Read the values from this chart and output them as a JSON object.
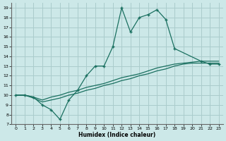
{
  "xlabel": "Humidex (Indice chaleur)",
  "bg_color": "#cce8e8",
  "grid_color": "#aacccc",
  "line_color": "#1a7060",
  "xlim": [
    -0.5,
    23.5
  ],
  "ylim": [
    7,
    19.5
  ],
  "xticks": [
    0,
    1,
    2,
    3,
    4,
    5,
    6,
    7,
    8,
    9,
    10,
    11,
    12,
    13,
    14,
    15,
    16,
    17,
    18,
    19,
    20,
    21,
    22,
    23
  ],
  "yticks": [
    7,
    8,
    9,
    10,
    11,
    12,
    13,
    14,
    15,
    16,
    17,
    18,
    19
  ],
  "line1_x": [
    0,
    1,
    2,
    3,
    4,
    5,
    6,
    7,
    8,
    9,
    10,
    11,
    12,
    13,
    14,
    15,
    16,
    17,
    18,
    21,
    22,
    23
  ],
  "line1_y": [
    10,
    10,
    9.8,
    9,
    8.5,
    7.5,
    9.5,
    10.5,
    12,
    13,
    13,
    15,
    19,
    16.5,
    18,
    18.3,
    18.8,
    17.8,
    14.8,
    13.5,
    13.2,
    13.2
  ],
  "line2_x": [
    0,
    1,
    2,
    3,
    4,
    5,
    6,
    7,
    8,
    9,
    10,
    11,
    12,
    13,
    14,
    15,
    16,
    17,
    18,
    19,
    20,
    21,
    22,
    23
  ],
  "line2_y": [
    10,
    10,
    9.8,
    9.5,
    9.8,
    10,
    10.3,
    10.5,
    10.8,
    11,
    11.2,
    11.5,
    11.8,
    12,
    12.2,
    12.5,
    12.8,
    13,
    13.2,
    13.3,
    13.4,
    13.5,
    13.5,
    13.5
  ],
  "line3_x": [
    0,
    1,
    2,
    3,
    4,
    5,
    6,
    7,
    8,
    9,
    10,
    11,
    12,
    13,
    14,
    15,
    16,
    17,
    18,
    19,
    20,
    21,
    22,
    23
  ],
  "line3_y": [
    10,
    10,
    9.7,
    9.3,
    9.5,
    9.7,
    10,
    10.2,
    10.5,
    10.7,
    11,
    11.2,
    11.5,
    11.7,
    12,
    12.2,
    12.5,
    12.7,
    13,
    13.2,
    13.3,
    13.3,
    13.3,
    13.3
  ]
}
